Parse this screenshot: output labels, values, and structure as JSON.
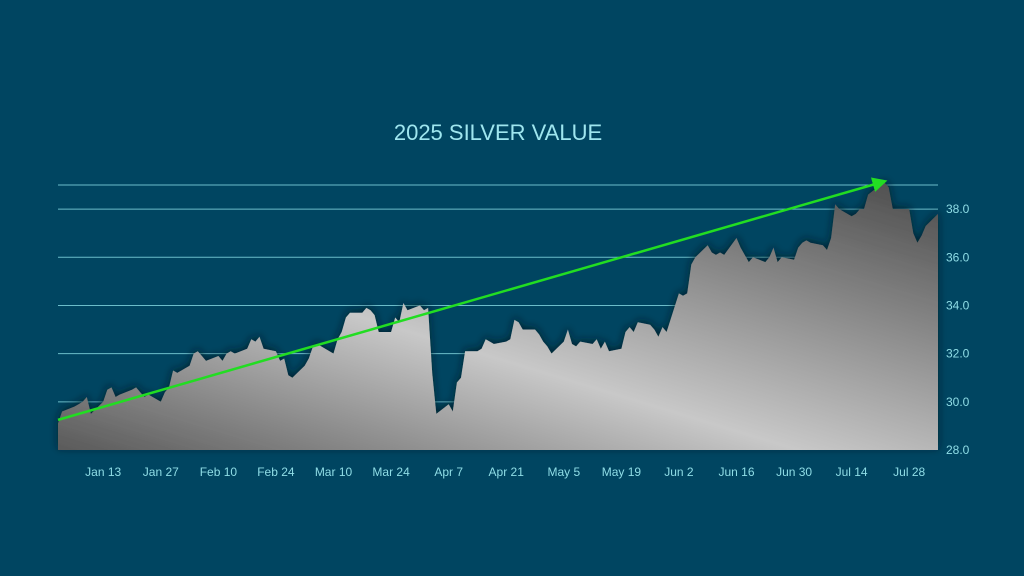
{
  "chart_data": {
    "type": "area",
    "title": "2025 SILVER VALUE",
    "xlabel": "",
    "ylabel": "",
    "ylim": [
      28.0,
      39.0
    ],
    "y_ticks": [
      "28.0",
      "30.0",
      "32.0",
      "34.0",
      "36.0",
      "38.0"
    ],
    "x_ticks": [
      "Jan 13",
      "Jan 27",
      "Feb 10",
      "Feb 24",
      "Mar 10",
      "Mar 24",
      "Apr 7",
      "Apr 21",
      "May 5",
      "May 19",
      "Jun 2",
      "Jun 16",
      "Jun 30",
      "Jul 14",
      "Jul 28"
    ],
    "grid": "horizontal",
    "y_axis_side": "right",
    "series": [
      {
        "points": [
          [
            "Jan 2",
            29.1
          ],
          [
            "Jan 3",
            29.6
          ],
          [
            "Jan 6",
            29.8
          ],
          [
            "Jan 7",
            29.9
          ],
          [
            "Jan 8",
            30.0
          ],
          [
            "Jan 9",
            30.2
          ],
          [
            "Jan 10",
            29.5
          ],
          [
            "Jan 13",
            30.0
          ],
          [
            "Jan 14",
            30.5
          ],
          [
            "Jan 15",
            30.6
          ],
          [
            "Jan 16",
            30.2
          ],
          [
            "Jan 17",
            30.3
          ],
          [
            "Jan 20",
            30.5
          ],
          [
            "Jan 21",
            30.6
          ],
          [
            "Jan 22",
            30.4
          ],
          [
            "Jan 23",
            30.2
          ],
          [
            "Jan 24",
            30.3
          ],
          [
            "Jan 27",
            30.0
          ],
          [
            "Jan 28",
            30.4
          ],
          [
            "Jan 29",
            30.6
          ],
          [
            "Jan 30",
            31.3
          ],
          [
            "Jan 31",
            31.2
          ],
          [
            "Feb 3",
            31.5
          ],
          [
            "Feb 4",
            32.0
          ],
          [
            "Feb 5",
            32.1
          ],
          [
            "Feb 6",
            31.9
          ],
          [
            "Feb 7",
            31.7
          ],
          [
            "Feb 10",
            31.9
          ],
          [
            "Feb 11",
            31.7
          ],
          [
            "Feb 12",
            32.0
          ],
          [
            "Feb 13",
            32.1
          ],
          [
            "Feb 14",
            32.0
          ],
          [
            "Feb 17",
            32.2
          ],
          [
            "Feb 18",
            32.6
          ],
          [
            "Feb 19",
            32.5
          ],
          [
            "Feb 20",
            32.7
          ],
          [
            "Feb 21",
            32.2
          ],
          [
            "Feb 24",
            32.1
          ],
          [
            "Feb 25",
            31.7
          ],
          [
            "Feb 26",
            31.8
          ],
          [
            "Feb 27",
            31.1
          ],
          [
            "Feb 28",
            31.0
          ],
          [
            "Mar 3",
            31.5
          ],
          [
            "Mar 4",
            31.8
          ],
          [
            "Mar 5",
            32.3
          ],
          [
            "Mar 6",
            32.4
          ],
          [
            "Mar 7",
            32.3
          ],
          [
            "Mar 10",
            32.0
          ],
          [
            "Mar 11",
            32.6
          ],
          [
            "Mar 12",
            32.9
          ],
          [
            "Mar 13",
            33.5
          ],
          [
            "Mar 14",
            33.7
          ],
          [
            "Mar 17",
            33.7
          ],
          [
            "Mar 18",
            33.9
          ],
          [
            "Mar 19",
            33.8
          ],
          [
            "Mar 20",
            33.6
          ],
          [
            "Mar 21",
            32.9
          ],
          [
            "Mar 24",
            32.9
          ],
          [
            "Mar 25",
            33.5
          ],
          [
            "Mar 26",
            33.3
          ],
          [
            "Mar 27",
            34.1
          ],
          [
            "Mar 28",
            33.8
          ],
          [
            "Mar 31",
            34.0
          ],
          [
            "Apr 1",
            33.8
          ],
          [
            "Apr 2",
            33.9
          ],
          [
            "Apr 3",
            31.2
          ],
          [
            "Apr 4",
            29.5
          ],
          [
            "Apr 7",
            29.9
          ],
          [
            "Apr 8",
            29.6
          ],
          [
            "Apr 9",
            30.8
          ],
          [
            "Apr 10",
            31.0
          ],
          [
            "Apr 11",
            32.1
          ],
          [
            "Apr 14",
            32.1
          ],
          [
            "Apr 15",
            32.2
          ],
          [
            "Apr 16",
            32.6
          ],
          [
            "Apr 17",
            32.5
          ],
          [
            "Apr 18",
            32.4
          ],
          [
            "Apr 21",
            32.5
          ],
          [
            "Apr 22",
            32.6
          ],
          [
            "Apr 23",
            33.4
          ],
          [
            "Apr 24",
            33.3
          ],
          [
            "Apr 25",
            33.0
          ],
          [
            "Apr 28",
            33.0
          ],
          [
            "Apr 29",
            32.8
          ],
          [
            "Apr 30",
            32.5
          ],
          [
            "May 1",
            32.3
          ],
          [
            "May 2",
            32.0
          ],
          [
            "May 5",
            32.5
          ],
          [
            "May 6",
            33.0
          ],
          [
            "May 7",
            32.4
          ],
          [
            "May 8",
            32.3
          ],
          [
            "May 9",
            32.5
          ],
          [
            "May 12",
            32.4
          ],
          [
            "May 13",
            32.6
          ],
          [
            "May 14",
            32.2
          ],
          [
            "May 15",
            32.5
          ],
          [
            "May 16",
            32.1
          ],
          [
            "May 19",
            32.2
          ],
          [
            "May 20",
            32.9
          ],
          [
            "May 21",
            33.1
          ],
          [
            "May 22",
            32.9
          ],
          [
            "May 23",
            33.3
          ],
          [
            "May 26",
            33.2
          ],
          [
            "May 27",
            33.0
          ],
          [
            "May 28",
            32.7
          ],
          [
            "May 29",
            33.1
          ],
          [
            "May 30",
            32.9
          ],
          [
            "Jun 2",
            34.5
          ],
          [
            "Jun 3",
            34.4
          ],
          [
            "Jun 4",
            34.5
          ],
          [
            "Jun 5",
            35.7
          ],
          [
            "Jun 6",
            36.0
          ],
          [
            "Jun 9",
            36.5
          ],
          [
            "Jun 10",
            36.2
          ],
          [
            "Jun 11",
            36.1
          ],
          [
            "Jun 12",
            36.2
          ],
          [
            "Jun 13",
            36.1
          ],
          [
            "Jun 16",
            36.8
          ],
          [
            "Jun 17",
            36.4
          ],
          [
            "Jun 18",
            36.1
          ],
          [
            "Jun 19",
            35.8
          ],
          [
            "Jun 20",
            36.0
          ],
          [
            "Jun 23",
            35.8
          ],
          [
            "Jun 24",
            36.0
          ],
          [
            "Jun 25",
            36.4
          ],
          [
            "Jun 26",
            35.8
          ],
          [
            "Jun 27",
            36.0
          ],
          [
            "Jun 30",
            35.9
          ],
          [
            "Jul 1",
            36.4
          ],
          [
            "Jul 2",
            36.6
          ],
          [
            "Jul 3",
            36.7
          ],
          [
            "Jul 4",
            36.6
          ],
          [
            "Jul 7",
            36.5
          ],
          [
            "Jul 8",
            36.3
          ],
          [
            "Jul 9",
            36.8
          ],
          [
            "Jul 10",
            38.2
          ],
          [
            "Jul 11",
            38.0
          ],
          [
            "Jul 14",
            37.7
          ],
          [
            "Jul 15",
            37.8
          ],
          [
            "Jul 16",
            38.0
          ],
          [
            "Jul 17",
            38.0
          ],
          [
            "Jul 18",
            38.6
          ],
          [
            "Jul 21",
            39.0
          ],
          [
            "Jul 22",
            39.1
          ],
          [
            "Jul 23",
            38.9
          ],
          [
            "Jul 24",
            38.0
          ],
          [
            "Jul 25",
            38.0
          ],
          [
            "Jul 28",
            38.0
          ],
          [
            "Jul 29",
            37.0
          ],
          [
            "Jul 30",
            36.6
          ],
          [
            "Jul 31",
            36.9
          ],
          [
            "Aug 1",
            37.3
          ],
          [
            "Aug 4",
            37.8
          ]
        ]
      }
    ],
    "trend_arrow": {
      "from": [
        "Jan 2",
        29.25
      ],
      "to": [
        "Jul 22",
        39.15
      ],
      "color": "#22dd22"
    },
    "colors": {
      "background": "#004561",
      "area_light": "#c8c8c8",
      "area_dark": "#4a4a4a",
      "grid": "#7fd3dd",
      "text": "#8fdde6",
      "title": "#9fe6ef",
      "trend": "#22dd22"
    }
  }
}
